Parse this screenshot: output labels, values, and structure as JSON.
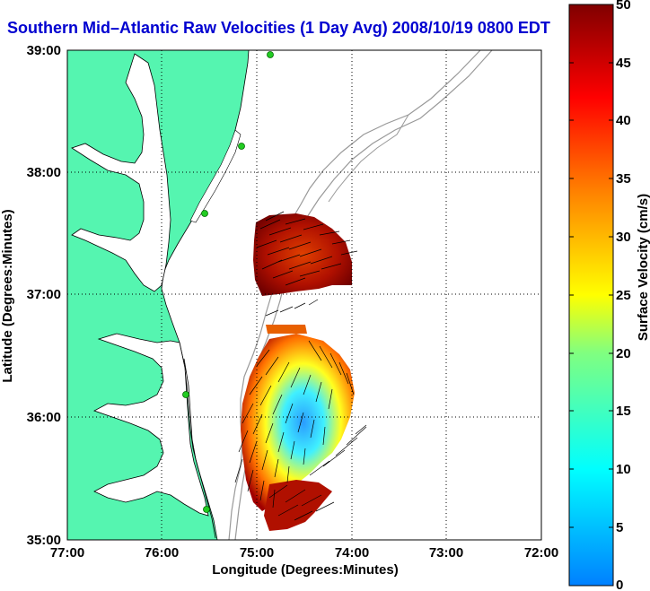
{
  "title": "Southern Mid–Atlantic Raw Velocities (1 Day Avg) 2008/10/19 0800 EDT",
  "x_axis": {
    "label": "Longitude (Degrees:Minutes)",
    "ticks": [
      "77:00",
      "76:00",
      "75:00",
      "74:00",
      "73:00",
      "72:00"
    ]
  },
  "y_axis": {
    "label": "Latitude (Degrees:Minutes)",
    "ticks": [
      "39:00",
      "38:00",
      "37:00",
      "36:00",
      "35:00"
    ]
  },
  "colorbar": {
    "label": "Surface Velocity (cm/s)",
    "ticks": [
      "50",
      "45",
      "40",
      "35",
      "30",
      "25",
      "20",
      "15",
      "10",
      "5",
      "0"
    ],
    "min": 0,
    "max": 50
  },
  "colors": {
    "title": "#0000d0",
    "land": "#55f5b0",
    "coast_line": "#000000",
    "bathymetry": "#999999",
    "station": "#22cc22"
  }
}
